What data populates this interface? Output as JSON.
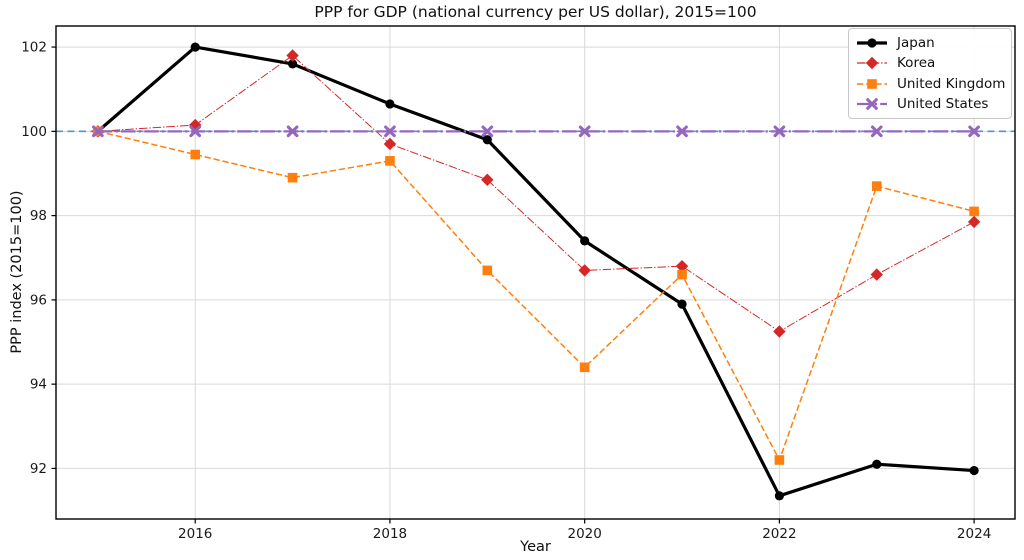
{
  "chart_data": {
    "type": "line",
    "title": "PPP for GDP (national currency per US dollar), 2015=100",
    "xlabel": "Year",
    "ylabel": "PPP index (2015=100)",
    "x": [
      2015,
      2016,
      2017,
      2018,
      2019,
      2020,
      2021,
      2022,
      2023,
      2024
    ],
    "series": [
      {
        "name": "Japan",
        "color": "#000000",
        "line_style": "solid",
        "line_width": 3.2,
        "marker": "circle",
        "values": [
          100,
          102.0,
          101.6,
          100.65,
          99.8,
          97.4,
          95.9,
          91.35,
          92.1,
          91.95
        ]
      },
      {
        "name": "Korea",
        "color": "#d62728",
        "line_style": "dashdot",
        "line_width": 1.0,
        "marker": "diamond",
        "values": [
          100,
          100.15,
          101.8,
          99.7,
          98.85,
          96.7,
          96.8,
          95.25,
          96.6,
          97.85
        ]
      },
      {
        "name": "United Kingdom",
        "color": "#ff7f0e",
        "line_style": "dashed",
        "line_width": 1.5,
        "marker": "square",
        "values": [
          100,
          99.45,
          98.9,
          99.3,
          96.7,
          94.4,
          96.6,
          92.2,
          98.7,
          98.1
        ]
      },
      {
        "name": "United States",
        "color": "#9467bd",
        "line_style": "dashdot",
        "line_width": 2.2,
        "marker": "x",
        "values": [
          100,
          100,
          100,
          100,
          100,
          100,
          100,
          100,
          100,
          100
        ]
      }
    ],
    "reference_line": {
      "y": 100,
      "color": "#5590d9",
      "style": "dashed",
      "width": 1.6
    },
    "xticks": [
      2016,
      2018,
      2020,
      2022,
      2024
    ],
    "yticks": [
      92,
      94,
      96,
      98,
      100,
      102
    ],
    "xlim": [
      2014.57,
      2024.42
    ],
    "ylim": [
      90.8,
      102.5
    ],
    "grid": true,
    "grid_color": "#d9d9d9",
    "axis_color": "#000000",
    "tick_label_color": "#1a1a1a",
    "legend_position": "upper right"
  }
}
